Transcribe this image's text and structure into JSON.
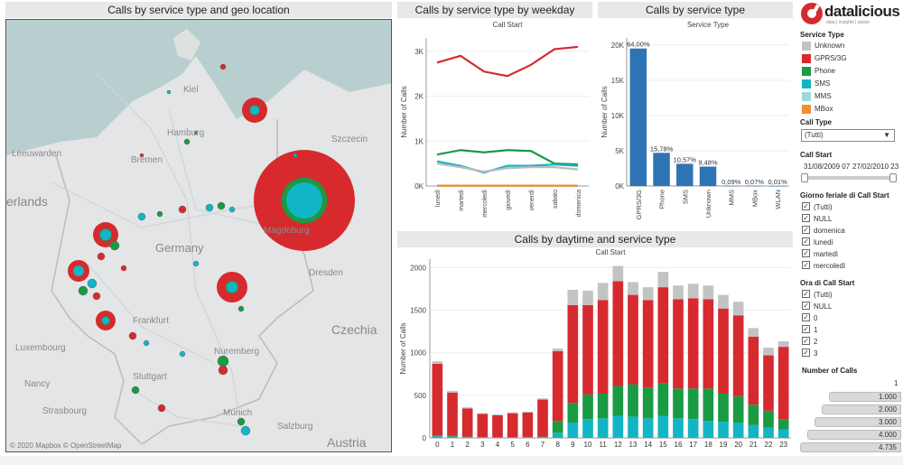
{
  "map": {
    "title": "Calls by service type and geo location",
    "attribution": "© 2020 Mapbox  © OpenStreetMap",
    "labels": [
      "Kiel",
      "Hamburg",
      "Bremen",
      "Leeuwarden",
      "Magdeburg",
      "Dresden",
      "Germany",
      "Frankfurt",
      "Luxembourg",
      "Nancy",
      "Strasbourg",
      "Stuttgart",
      "Nuremberg",
      "Munich",
      "Salzburg",
      "Czechia",
      "Austria",
      "erlands",
      "Szczecin"
    ]
  },
  "weekday_chart": {
    "title": "Calls by service type by weekday",
    "subtitle": "Call Start",
    "ylabel": "Number of Calls",
    "yticks": [
      "0K",
      "1K",
      "2K",
      "3K"
    ]
  },
  "service_chart": {
    "title": "Calls by service type",
    "subtitle": "Service Type",
    "ylabel": "Number of Calls",
    "yticks": [
      "0K",
      "5K",
      "10K",
      "15K",
      "20K"
    ]
  },
  "daytime_chart": {
    "title": "Calls by daytime and service type",
    "subtitle": "Call Start",
    "ylabel": "Number of Calls",
    "yticks": [
      "0",
      "500",
      "1000",
      "1500",
      "2000"
    ]
  },
  "chart_data": [
    {
      "type": "line",
      "title": "Calls by service type by weekday",
      "xlabel": "Call Start",
      "ylabel": "Number of Calls",
      "categories": [
        "lunedì",
        "martedì",
        "mercoledì",
        "giovedì",
        "venerdì",
        "sabato",
        "domenica"
      ],
      "ylim": [
        0,
        3300
      ],
      "series": [
        {
          "name": "GPRS/3G",
          "color": "#d62a2f",
          "values": [
            2750,
            2900,
            2550,
            2450,
            2700,
            3050,
            3100
          ]
        },
        {
          "name": "Phone",
          "color": "#1a9a43",
          "values": [
            700,
            800,
            750,
            800,
            780,
            500,
            480
          ]
        },
        {
          "name": "SMS",
          "color": "#12b5c6",
          "values": [
            550,
            450,
            300,
            450,
            450,
            480,
            450
          ]
        },
        {
          "name": "Unknown",
          "color": "#bbbbbb",
          "values": [
            500,
            420,
            320,
            400,
            420,
            420,
            370
          ]
        },
        {
          "name": "MMS",
          "color": "#9fd9d9",
          "values": [
            10,
            10,
            10,
            10,
            10,
            10,
            10
          ]
        },
        {
          "name": "MBox",
          "color": "#f28e2b",
          "values": [
            5,
            5,
            5,
            5,
            5,
            5,
            5
          ]
        }
      ]
    },
    {
      "type": "bar",
      "title": "Calls by service type",
      "xlabel": "Service Type",
      "ylabel": "Number of Calls",
      "categories": [
        "GPRS/3G",
        "Phone",
        "SMS",
        "Unknown",
        "MMS",
        "MBox",
        "WLAN"
      ],
      "values": [
        19500,
        4700,
        3150,
        2750,
        20,
        15,
        5
      ],
      "data_labels": [
        "64,00%",
        "15,78%",
        "10,57%",
        "9,48%",
        "0,09%",
        "0,07%",
        "0,01%"
      ],
      "ylim": [
        0,
        21000
      ],
      "color": "#2e74b5"
    },
    {
      "type": "bar",
      "stacked": true,
      "title": "Calls by daytime and service type",
      "xlabel": "Call Start",
      "ylabel": "Number of Calls",
      "categories": [
        "0",
        "1",
        "2",
        "3",
        "4",
        "5",
        "6",
        "7",
        "8",
        "9",
        "10",
        "11",
        "12",
        "13",
        "14",
        "15",
        "16",
        "17",
        "18",
        "19",
        "20",
        "21",
        "22",
        "23"
      ],
      "ylim": [
        0,
        2100
      ],
      "series": [
        {
          "name": "SMS",
          "color": "#12b5c6",
          "values": [
            20,
            15,
            10,
            8,
            5,
            5,
            8,
            10,
            60,
            180,
            220,
            230,
            260,
            250,
            230,
            260,
            230,
            220,
            200,
            190,
            180,
            150,
            120,
            100
          ]
        },
        {
          "name": "Phone",
          "color": "#1a9a43",
          "values": [
            10,
            8,
            5,
            3,
            2,
            2,
            3,
            5,
            140,
            230,
            290,
            290,
            350,
            380,
            360,
            380,
            350,
            360,
            380,
            330,
            310,
            240,
            200,
            120
          ]
        },
        {
          "name": "GPRS/3G",
          "color": "#d62a2f",
          "values": [
            840,
            510,
            330,
            270,
            258,
            283,
            288,
            435,
            820,
            1150,
            1050,
            1100,
            1230,
            1050,
            1030,
            1130,
            1050,
            1060,
            1050,
            1000,
            950,
            800,
            650,
            850
          ]
        },
        {
          "name": "Unknown",
          "color": "#c3c3c3",
          "values": [
            30,
            20,
            15,
            10,
            10,
            10,
            10,
            15,
            30,
            180,
            170,
            200,
            180,
            150,
            150,
            180,
            160,
            170,
            160,
            160,
            160,
            100,
            90,
            65
          ]
        }
      ]
    }
  ],
  "sidebar": {
    "logo": "datalicious",
    "logo_sub": "data | insights | action",
    "service_type_title": "Service Type",
    "service_types": [
      {
        "label": "Unknown",
        "color": "#c3c3c3"
      },
      {
        "label": "GPRS/3G",
        "color": "#d62a2f"
      },
      {
        "label": "Phone",
        "color": "#1a9a43"
      },
      {
        "label": "SMS",
        "color": "#12b5c6"
      },
      {
        "label": "MMS",
        "color": "#9fd9d9"
      },
      {
        "label": "MBox",
        "color": "#f28e2b"
      }
    ],
    "call_type_title": "Call Type",
    "call_type_value": "(Tutti)",
    "call_start_title": "Call Start",
    "call_start_from": "31/08/2009 07",
    "call_start_to": "27/02/2010 23",
    "weekday_filter_title": "Giorno feriale di Call Start",
    "weekday_filter_items": [
      "(Tutti)",
      "NULL",
      "domenica",
      "lunedì",
      "martedì",
      "mercoledì"
    ],
    "hour_filter_title": "Ora di Call Start",
    "hour_filter_items": [
      "(Tutti)",
      "NULL",
      "0",
      "1",
      "2",
      "3"
    ],
    "size_legend_title": "Number of Calls",
    "size_legend_items": [
      "1",
      "1.000",
      "2.000",
      "3.000",
      "4.000",
      "4.735"
    ]
  }
}
